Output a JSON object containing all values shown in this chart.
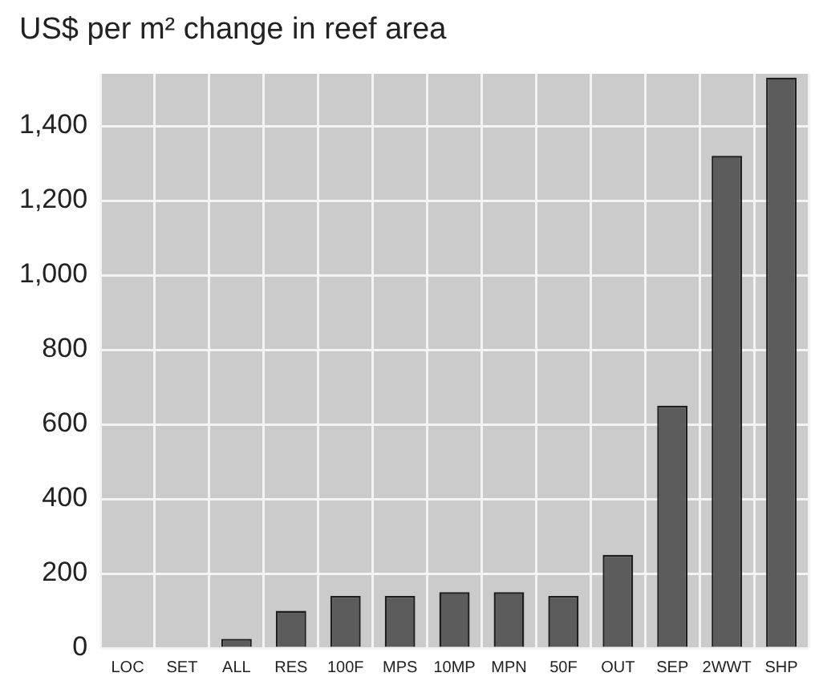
{
  "chart_data": {
    "type": "bar",
    "title": "US$ per m² change in reef area",
    "categories": [
      "LOC",
      "SET",
      "ALL",
      "RES",
      "100F",
      "MPS",
      "10MP",
      "MPN",
      "50F",
      "OUT",
      "SEP",
      "2WWT",
      "SHP"
    ],
    "values": [
      0,
      0,
      25,
      100,
      140,
      140,
      150,
      150,
      140,
      250,
      650,
      1320,
      1530
    ],
    "color": "#5c5c5c",
    "ylim": [
      0,
      1540
    ],
    "yticks": [
      0,
      200,
      400,
      600,
      800,
      {
        "value": 1000,
        "label": "1,000"
      },
      {
        "value": 1200,
        "label": "1,200"
      },
      {
        "value": 1400,
        "label": "1,400"
      }
    ],
    "grid": true
  }
}
